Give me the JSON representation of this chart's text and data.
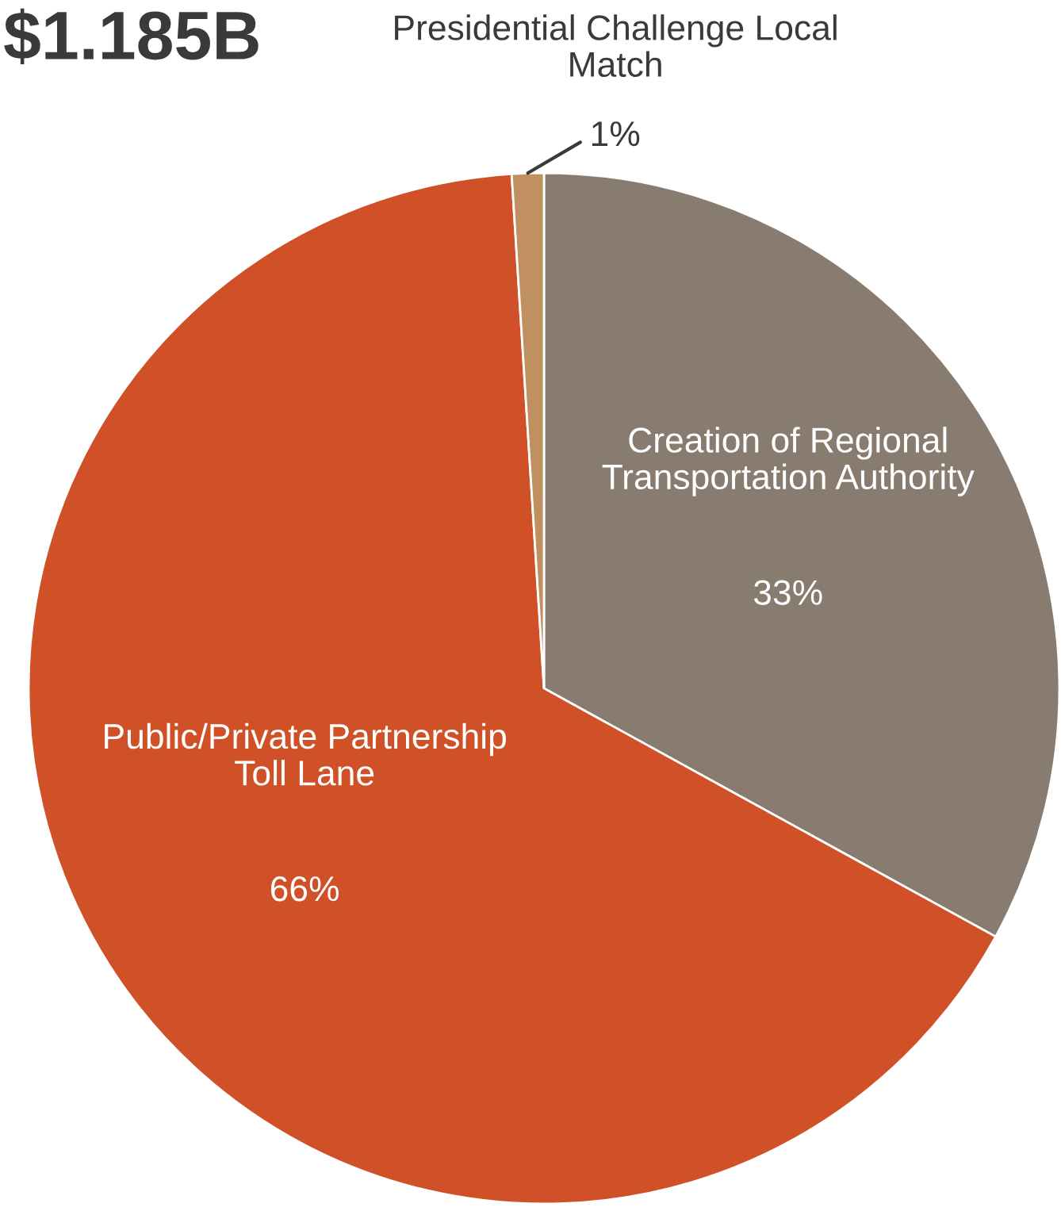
{
  "chart_data": {
    "type": "pie",
    "title": "$1.185B",
    "categories": [
      "Creation of Regional\nTransportation Authority",
      "Public/Private Partnership\nToll Lane",
      "Presidential Challenge Local\nMatch"
    ],
    "values": [
      33,
      66,
      1
    ],
    "colors": [
      "#887b70",
      "#d05127",
      "#c09060"
    ],
    "value_labels": [
      "33%",
      "66%",
      "1%"
    ]
  }
}
